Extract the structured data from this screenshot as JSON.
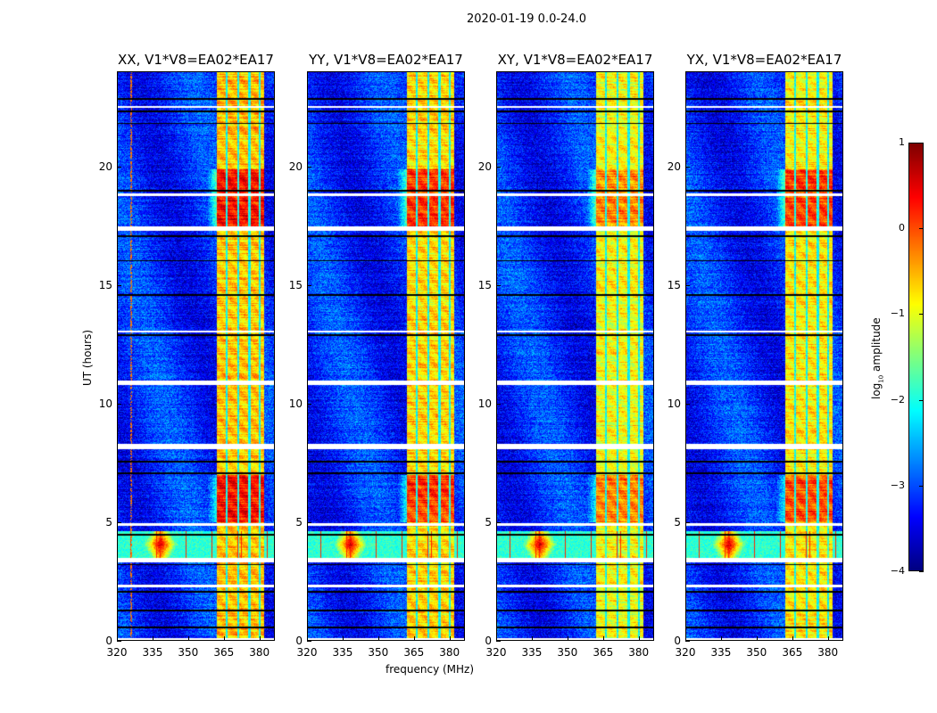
{
  "chart_data": {
    "type": "heatmap",
    "title": "2020-01-19 0.0-24.0",
    "xlabel": "frequency (MHz)",
    "ylabel": "UT (hours)",
    "xlim": [
      320,
      386.5
    ],
    "ylim": [
      0,
      24
    ],
    "xticks": [
      "320",
      "335",
      "350",
      "365",
      "380"
    ],
    "xtick_values": [
      320,
      335,
      350,
      365,
      380
    ],
    "yticks": [
      "0",
      "5",
      "10",
      "15",
      "20"
    ],
    "ytick_values": [
      0,
      5,
      10,
      15,
      20
    ],
    "colormap": "jet",
    "colorbar": {
      "label": "log10 amplitude",
      "label_main": "log",
      "label_sub": "10",
      "label_rest": " amplitude",
      "range": [
        -4,
        1
      ],
      "ticks": [
        "1",
        "0",
        "−1",
        "−2",
        "−3",
        "−4"
      ],
      "tick_values": [
        1,
        0,
        -1,
        -2,
        -3,
        -4
      ]
    },
    "panels": [
      {
        "title": "XX, V1*V8=EA02*EA17",
        "band_level": -0.6,
        "strong_boost": 0.9,
        "seed": 11,
        "rfi_line": 325.5
      },
      {
        "title": "YY, V1*V8=EA02*EA17",
        "band_level": -0.7,
        "strong_boost": 0.8,
        "seed": 23,
        "rfi_line": null
      },
      {
        "title": "XY, V1*V8=EA02*EA17",
        "band_level": -0.9,
        "strong_boost": 0.6,
        "seed": 37,
        "rfi_line": null
      },
      {
        "title": "YX, V1*V8=EA02*EA17",
        "band_level": -0.8,
        "strong_boost": 0.8,
        "seed": 51,
        "rfi_line": null
      }
    ],
    "band_mhz": [
      362,
      382
    ],
    "channel_gaps_mhz": [
      366.2,
      371.0,
      375.8,
      380.2
    ],
    "strong_hours": [
      [
        17.4,
        19.9
      ],
      [
        5.0,
        7.0
      ]
    ],
    "rfi_burst_hours": [
      3.5,
      4.6
    ],
    "rfi_burst_peak_mhz": 338,
    "flagged_hours": [
      0.05,
      2.3,
      3.35,
      3.45,
      4.9,
      8.15,
      8.25,
      10.85,
      10.95,
      13.05,
      17.35,
      17.45,
      18.85,
      22.55
    ],
    "dropout_hours": [
      0.55,
      1.25,
      2.05,
      3.2,
      4.45,
      7.05,
      7.55,
      12.9,
      14.6,
      16.05,
      17.1,
      19.0,
      21.85,
      22.35,
      22.9
    ]
  }
}
